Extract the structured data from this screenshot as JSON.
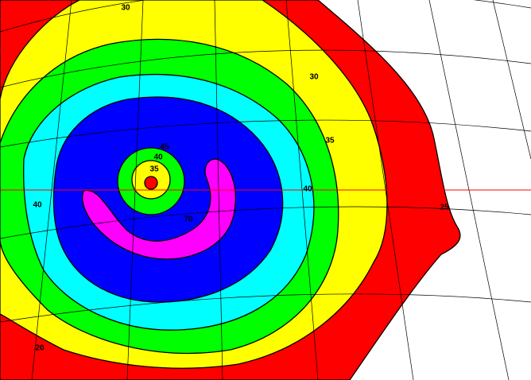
{
  "contour_labels": [
    {
      "text": "30"
    },
    {
      "text": "30"
    },
    {
      "text": "35"
    },
    {
      "text": "40"
    },
    {
      "text": "25"
    },
    {
      "text": "40"
    },
    {
      "text": "45"
    },
    {
      "text": "40"
    },
    {
      "text": "35"
    },
    {
      "text": "70"
    },
    {
      "text": "20"
    }
  ]
}
